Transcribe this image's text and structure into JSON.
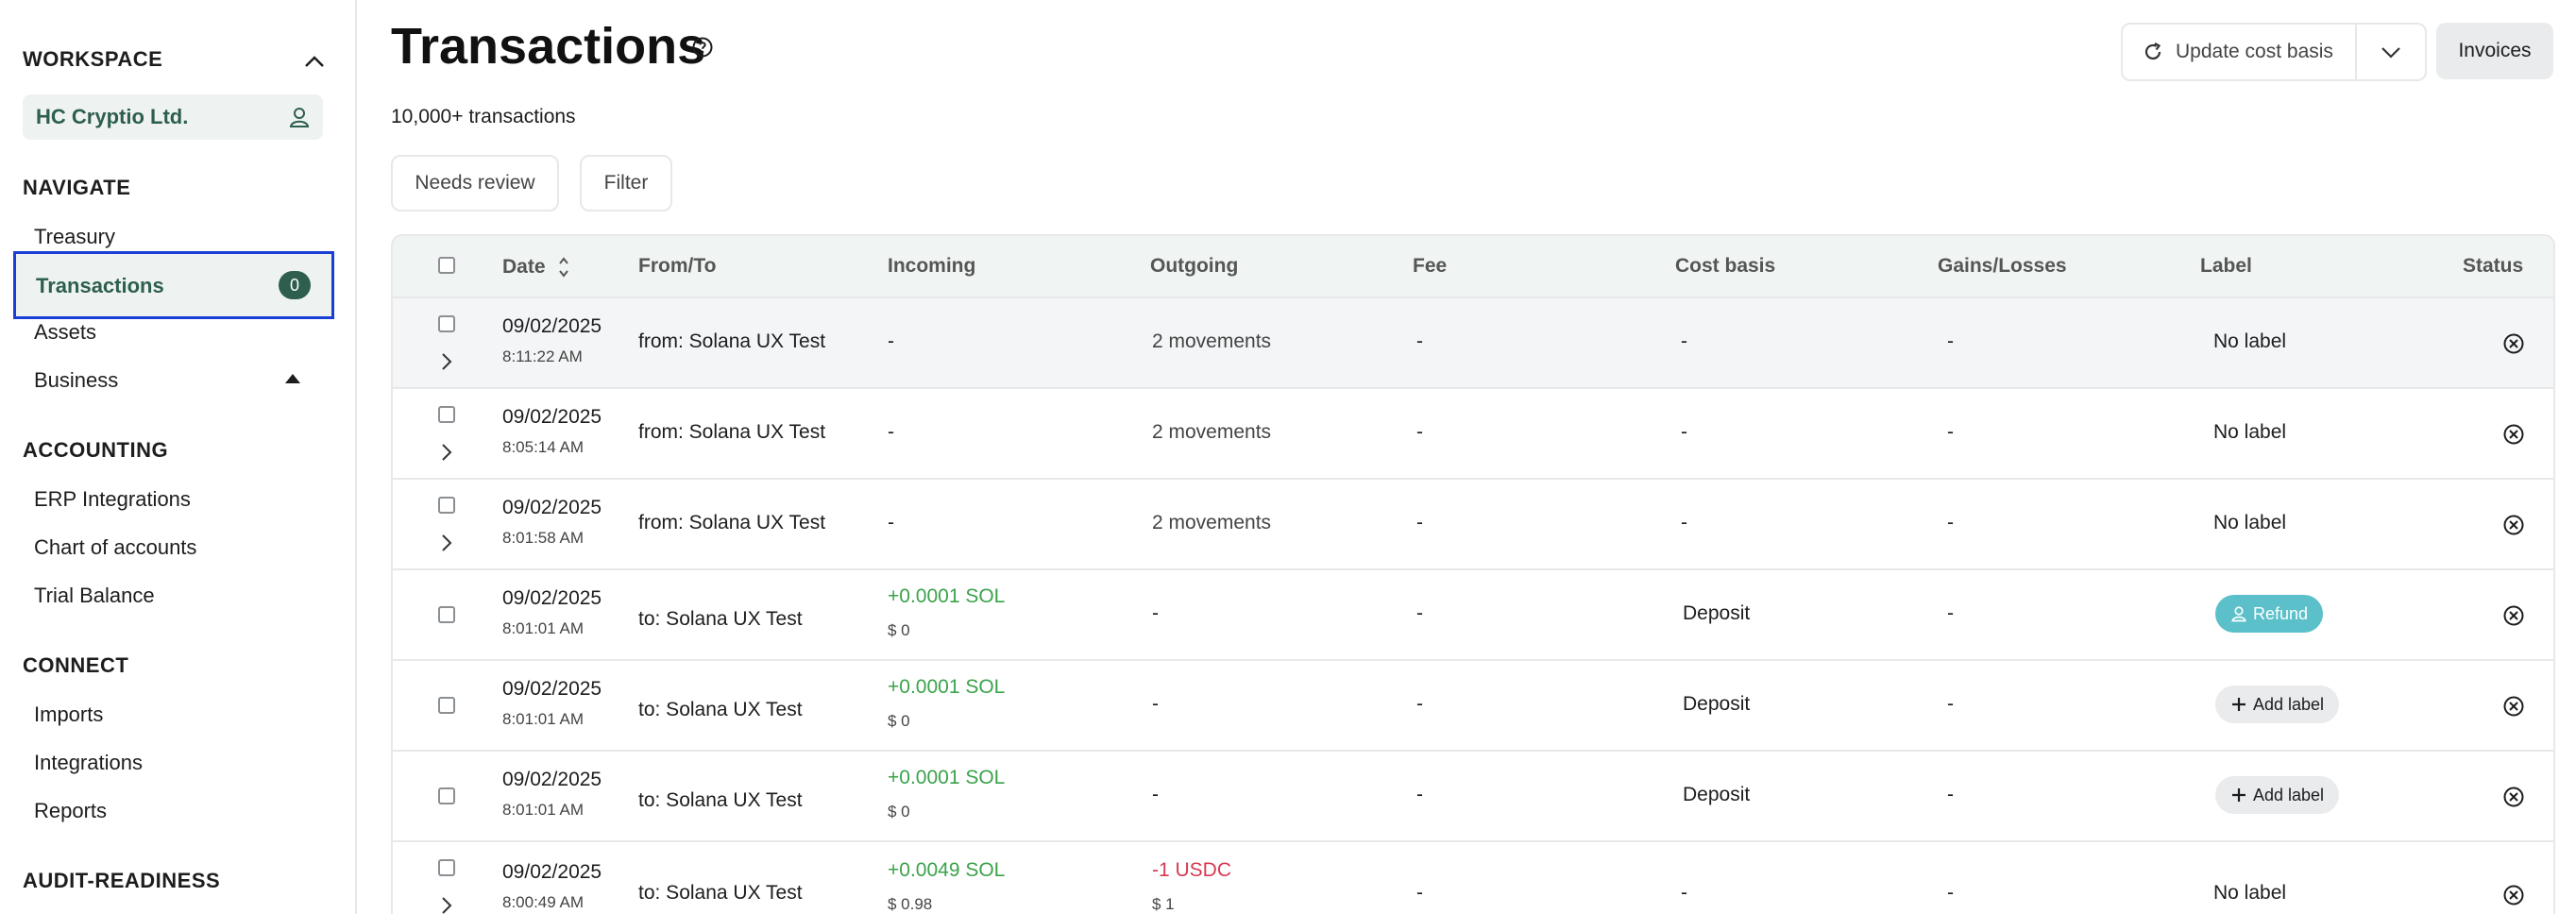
{
  "sidebar": {
    "workspace_heading": "WORKSPACE",
    "workspace_name": "HC Cryptio Ltd.",
    "navigate_heading": "NAVIGATE",
    "navigate_items": [
      "Treasury",
      "Transactions",
      "Assets",
      "Business"
    ],
    "transactions_badge": "0",
    "accounting_heading": "ACCOUNTING",
    "accounting_items": [
      "ERP Integrations",
      "Chart of accounts",
      "Trial Balance"
    ],
    "connect_heading": "CONNECT",
    "connect_items": [
      "Imports",
      "Integrations",
      "Reports"
    ],
    "audit_heading": "AUDIT-READINESS"
  },
  "header": {
    "title": "Transactions",
    "count": "10,000+ transactions",
    "update_cost_basis": "Update cost basis",
    "invoices": "Invoices"
  },
  "filters": {
    "needs_review": "Needs review",
    "filter": "Filter"
  },
  "table": {
    "columns": [
      "Date",
      "From/To",
      "Incoming",
      "Outgoing",
      "Fee",
      "Cost basis",
      "Gains/Losses",
      "Label",
      "Status"
    ],
    "rows": [
      {
        "date": "09/02/2025",
        "time": "8:11:22 AM",
        "fromto": "from: Solana UX Test",
        "incoming": "-",
        "incoming_usd": "",
        "outgoing": "2 movements",
        "outgoing_usd": "",
        "fee": "-",
        "cost_basis": "-",
        "gains": "-",
        "label": "No label"
      },
      {
        "date": "09/02/2025",
        "time": "8:05:14 AM",
        "fromto": "from: Solana UX Test",
        "incoming": "-",
        "incoming_usd": "",
        "outgoing": "2 movements",
        "outgoing_usd": "",
        "fee": "-",
        "cost_basis": "-",
        "gains": "-",
        "label": "No label"
      },
      {
        "date": "09/02/2025",
        "time": "8:01:58 AM",
        "fromto": "from: Solana UX Test",
        "incoming": "-",
        "incoming_usd": "",
        "outgoing": "2 movements",
        "outgoing_usd": "",
        "fee": "-",
        "cost_basis": "-",
        "gains": "-",
        "label": "No label"
      },
      {
        "date": "09/02/2025",
        "time": "8:01:01 AM",
        "fromto": "to: Solana UX Test",
        "incoming": "+0.0001 SOL",
        "incoming_usd": "$ 0",
        "outgoing": "-",
        "outgoing_usd": "",
        "fee": "-",
        "cost_basis": "Deposit",
        "gains": "-",
        "label": "Refund"
      },
      {
        "date": "09/02/2025",
        "time": "8:01:01 AM",
        "fromto": "to: Solana UX Test",
        "incoming": "+0.0001 SOL",
        "incoming_usd": "$ 0",
        "outgoing": "-",
        "outgoing_usd": "",
        "fee": "-",
        "cost_basis": "Deposit",
        "gains": "-",
        "label": "Add label"
      },
      {
        "date": "09/02/2025",
        "time": "8:01:01 AM",
        "fromto": "to: Solana UX Test",
        "incoming": "+0.0001 SOL",
        "incoming_usd": "$ 0",
        "outgoing": "-",
        "outgoing_usd": "",
        "fee": "-",
        "cost_basis": "Deposit",
        "gains": "-",
        "label": "Add label"
      },
      {
        "date": "09/02/2025",
        "time": "8:00:49 AM",
        "fromto": "to: Solana UX Test",
        "incoming": "+0.0049 SOL",
        "incoming_usd": "$ 0.98",
        "outgoing": "-1 USDC",
        "outgoing_usd": "$ 1",
        "fee": "-",
        "cost_basis": "-",
        "gains": "-",
        "label": "No label"
      }
    ]
  },
  "colors": {
    "accent_green": "#2e5e4e",
    "selection_border": "#1a3fd6",
    "incoming_green": "#3aa34a",
    "outgoing_red": "#d63b53",
    "refund_tag": "#5bc0c9"
  }
}
